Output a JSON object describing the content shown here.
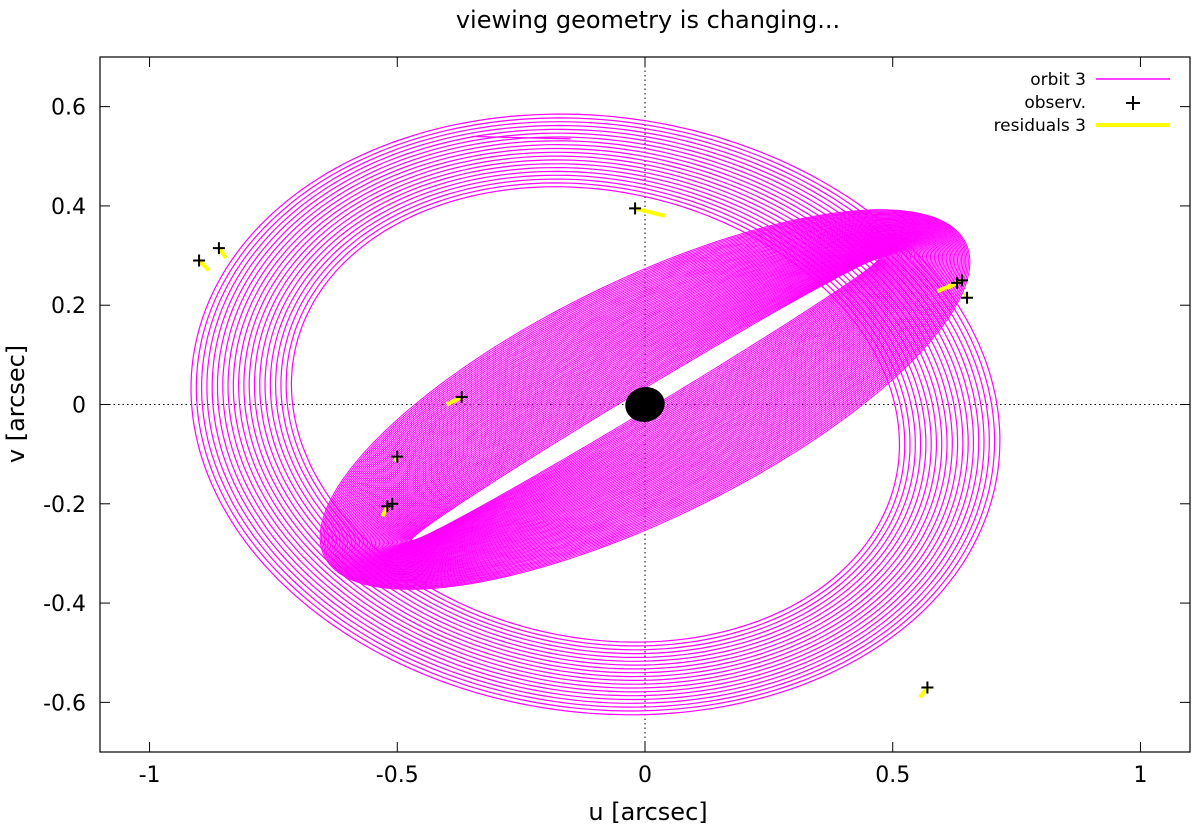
{
  "chart_data": {
    "type": "line",
    "title": "viewing geometry is changing...",
    "xlabel": "u [arcsec]",
    "ylabel": "v [arcsec]",
    "xlim": [
      -1.1,
      1.1
    ],
    "ylim": [
      -0.7,
      0.7
    ],
    "xticks": [
      -1,
      -0.5,
      0,
      0.5,
      1
    ],
    "yticks": [
      0.6,
      0.4,
      0.2,
      0,
      -0.2,
      -0.4,
      -0.6
    ],
    "grid": false,
    "zero_lines": true,
    "legend_position": "top-right",
    "colors": {
      "orbit": "#ff00ff",
      "observations": "#000000",
      "residuals": "#ffff00"
    },
    "series": [
      {
        "name": "orbit 3",
        "kind": "precessing-ellipse-family",
        "outer_family": {
          "center": [
            -0.1,
            -0.02
          ],
          "semi_axis_a": [
            0.82,
            0.62
          ],
          "semi_axis_b": [
            0.6,
            0.45
          ],
          "tilt_deg": [
            -8,
            -12
          ],
          "count": 20,
          "start_point": [
            -0.35,
            0.54
          ]
        },
        "inner_family": {
          "center": [
            0.0,
            0.01
          ],
          "semi_axis_a": [
            0.72,
            0.55
          ],
          "semi_axis_b": [
            0.24,
            0.02
          ],
          "tilt_deg": [
            26,
            31
          ],
          "count": 70
        }
      },
      {
        "name": "observ.",
        "points": [
          [
            -0.9,
            0.29
          ],
          [
            -0.86,
            0.315
          ],
          [
            -0.02,
            0.395
          ],
          [
            0.63,
            0.245
          ],
          [
            0.64,
            0.25
          ],
          [
            0.65,
            0.215
          ],
          [
            -0.37,
            0.015
          ],
          [
            -0.5,
            -0.105
          ],
          [
            -0.52,
            -0.205
          ],
          [
            -0.51,
            -0.2
          ],
          [
            0.57,
            -0.57
          ]
        ]
      },
      {
        "name": "residuals 3",
        "segments": [
          [
            [
              -0.9,
              0.29
            ],
            [
              -0.88,
              0.27
            ]
          ],
          [
            [
              -0.86,
              0.315
            ],
            [
              -0.845,
              0.295
            ]
          ],
          [
            [
              -0.02,
              0.395
            ],
            [
              0.04,
              0.38
            ]
          ],
          [
            [
              0.63,
              0.245
            ],
            [
              0.59,
              0.228
            ]
          ],
          [
            [
              0.64,
              0.25
            ],
            [
              0.61,
              0.235
            ]
          ],
          [
            [
              0.65,
              0.215
            ],
            [
              0.645,
              0.225
            ]
          ],
          [
            [
              -0.37,
              0.015
            ],
            [
              -0.4,
              0.0
            ]
          ],
          [
            [
              -0.5,
              -0.105
            ],
            [
              -0.505,
              -0.115
            ]
          ],
          [
            [
              -0.52,
              -0.205
            ],
            [
              -0.53,
              -0.225
            ]
          ],
          [
            [
              0.57,
              -0.57
            ],
            [
              0.555,
              -0.59
            ]
          ]
        ]
      }
    ],
    "central_blob": {
      "label": "",
      "center": [
        0.0,
        0.0
      ],
      "extent": [
        0.04,
        0.035
      ]
    }
  }
}
